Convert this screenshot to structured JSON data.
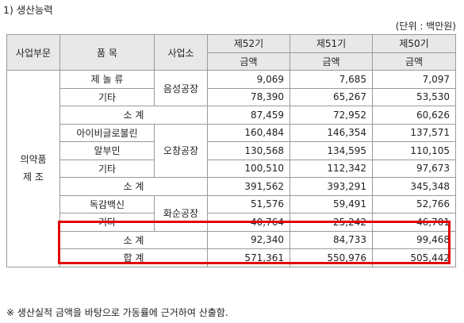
{
  "heading": "1) 생산능력",
  "unit": "(단위 : 백만원)",
  "headers": {
    "division": "사업부문",
    "item": "품 목",
    "plant": "사업소",
    "p52": "제52기",
    "p51": "제51기",
    "p50": "제50기",
    "amount": "금액"
  },
  "division_line1": "의약품",
  "division_line2": "제 조",
  "groups": [
    {
      "plant": "음성공장",
      "rows": [
        {
          "item": "제 놀 류",
          "v52": "9,069",
          "v51": "7,685",
          "v50": "7,097"
        },
        {
          "item": "기타",
          "v52": "78,390",
          "v51": "65,267",
          "v50": "53,530"
        }
      ],
      "subtotal": {
        "label": "소 계",
        "v52": "87,459",
        "v51": "72,952",
        "v50": "60,626"
      }
    },
    {
      "plant": "오창공장",
      "rows": [
        {
          "item": "아이비글로불린",
          "v52": "160,484",
          "v51": "146,354",
          "v50": "137,571"
        },
        {
          "item": "알부민",
          "v52": "130,568",
          "v51": "134,595",
          "v50": "110,105"
        },
        {
          "item": "기타",
          "v52": "100,510",
          "v51": "112,342",
          "v50": "97,673"
        }
      ],
      "subtotal": {
        "label": "소 계",
        "v52": "391,562",
        "v51": "393,291",
        "v50": "345,348"
      }
    },
    {
      "plant": "화순공장",
      "rows": [
        {
          "item": "독감백신",
          "v52": "51,576",
          "v51": "59,491",
          "v50": "52,766"
        },
        {
          "item": "기타",
          "v52": "40,764",
          "v51": "25,242",
          "v50": "46,701"
        }
      ],
      "subtotal": {
        "label": "소 계",
        "v52": "92,340",
        "v51": "84,733",
        "v50": "99,468"
      }
    }
  ],
  "total": {
    "label": "합 계",
    "v52": "571,361",
    "v51": "550,976",
    "v50": "505,442"
  },
  "note": "※ 생산실적 금액을 바탕으로 가동률에 근거하여 산출함.",
  "highlight_color": "#e00000"
}
